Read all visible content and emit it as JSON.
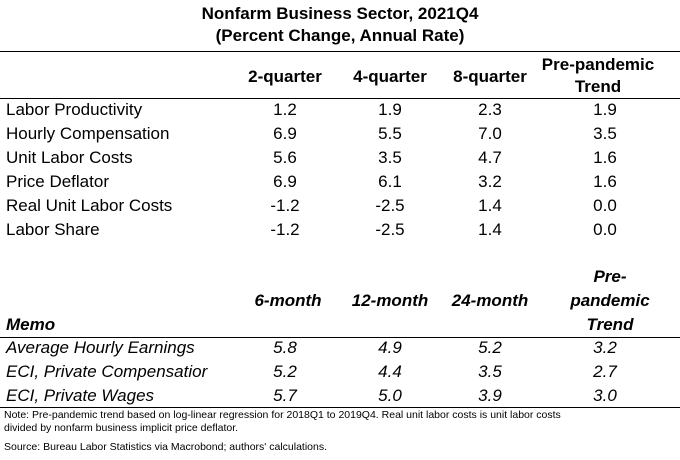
{
  "title_line1": "Nonfarm Business Sector, 2021Q4",
  "title_line2": "(Percent Change, Annual Rate)",
  "top_table": {
    "headers": [
      "2-quarter",
      "4-quarter",
      "8-quarter"
    ],
    "trend_header_line1": "Pre-pandemic",
    "trend_header_line2": "Trend",
    "rows": [
      {
        "label": "Labor Productivity",
        "values": [
          "1.2",
          "1.9",
          "2.3",
          "1.9"
        ]
      },
      {
        "label": "Hourly Compensation",
        "values": [
          "6.9",
          "5.5",
          "7.0",
          "3.5"
        ]
      },
      {
        "label": "Unit Labor Costs",
        "values": [
          "5.6",
          "3.5",
          "4.7",
          "1.6"
        ]
      },
      {
        "label": "Price Deflator",
        "values": [
          "6.9",
          "6.1",
          "3.2",
          "1.6"
        ]
      },
      {
        "label": "Real Unit Labor Costs",
        "values": [
          "-1.2",
          "-2.5",
          "1.4",
          "0.0"
        ]
      },
      {
        "label": "Labor Share",
        "values": [
          "-1.2",
          "-2.5",
          "1.4",
          "0.0"
        ]
      }
    ]
  },
  "memo_table": {
    "memo_label": "Memo",
    "headers": [
      "6-month",
      "12-month",
      "24-month"
    ],
    "trend_header_line1": "Pre-",
    "trend_header_line2": "pandemic",
    "trend_header_line3": "Trend",
    "rows": [
      {
        "label": "Average Hourly Earnings",
        "values": [
          "5.8",
          "4.9",
          "5.2",
          "3.2"
        ]
      },
      {
        "label": "ECI, Private Compensatior",
        "values": [
          "5.2",
          "4.4",
          "3.5",
          "2.7"
        ]
      },
      {
        "label": "ECI, Private Wages",
        "values": [
          "5.7",
          "5.0",
          "3.9",
          "3.0"
        ]
      }
    ]
  },
  "note_line1": "Note: Pre-pandemic trend based on log-linear regression for 2018Q1 to 2019Q4. Real unit labor costs is unit labor costs",
  "note_line2": "divided by nonfarm business implicit price deflator.",
  "source": "Source: Bureau Labor Statistics via Macrobond; authors' calculations."
}
